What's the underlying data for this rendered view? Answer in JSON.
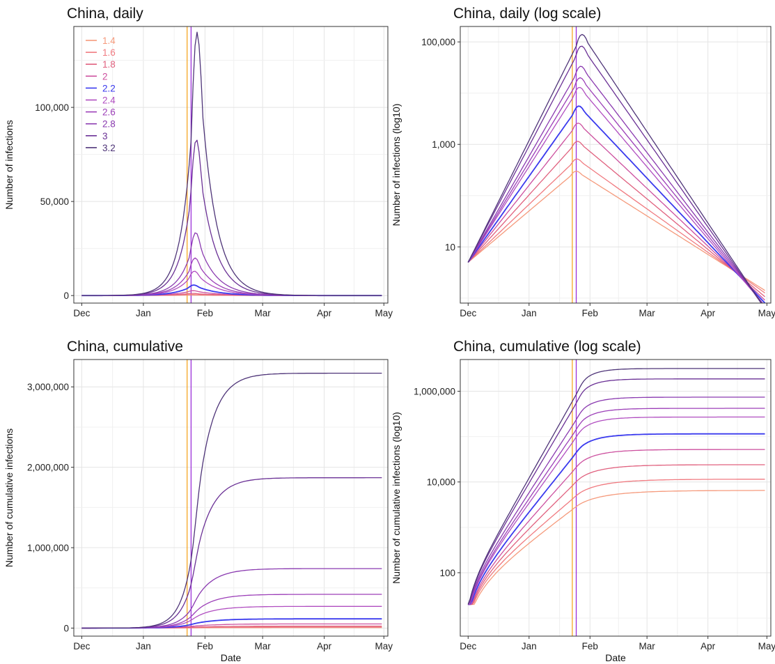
{
  "chart_data": [
    {
      "id": "daily",
      "type": "line",
      "title": "China, daily",
      "xlabel": "",
      "ylabel": "Number of infections",
      "y_scale": "linear",
      "x_ticks": [
        "Dec",
        "Jan",
        "Feb",
        "Mar",
        "Apr",
        "May"
      ],
      "y_ticks": [
        0,
        50000,
        100000
      ],
      "y_tick_labels": [
        "0",
        "50,000",
        "100,000"
      ],
      "ylim": [
        -4000,
        143000
      ],
      "xlim": [
        "2019-11-27",
        "2020-05-03"
      ],
      "grid": true,
      "legend": "top-left",
      "vlines": [
        {
          "x": "2020-01-23",
          "color": "#f5a623"
        },
        {
          "x": "2020-01-25",
          "color": "#9b30d9"
        }
      ]
    },
    {
      "id": "daily_log",
      "type": "line",
      "title": "China, daily (log scale)",
      "xlabel": "",
      "ylabel": "Number of infections (log10)",
      "y_scale": "log10",
      "x_ticks": [
        "Dec",
        "Jan",
        "Feb",
        "Mar",
        "Apr",
        "May"
      ],
      "y_ticks": [
        10,
        1000,
        100000
      ],
      "y_tick_labels": [
        "10",
        "1,000",
        "100,000"
      ],
      "ylim": [
        0.8,
        200000
      ],
      "xlim": [
        "2019-11-27",
        "2020-05-03"
      ],
      "grid": true,
      "legend": "none",
      "vlines": [
        {
          "x": "2020-01-23",
          "color": "#f5a623"
        },
        {
          "x": "2020-01-25",
          "color": "#9b30d9"
        }
      ]
    },
    {
      "id": "cumulative",
      "type": "line",
      "title": "China, cumulative",
      "xlabel": "Date",
      "ylabel": "Number of cumulative infections",
      "y_scale": "linear",
      "x_ticks": [
        "Dec",
        "Jan",
        "Feb",
        "Mar",
        "Apr",
        "May"
      ],
      "y_ticks": [
        0,
        1000000,
        2000000,
        3000000
      ],
      "y_tick_labels": [
        "0",
        "1,000,000",
        "2,000,000",
        "3,000,000"
      ],
      "ylim": [
        -100000,
        3340000
      ],
      "xlim": [
        "2019-11-27",
        "2020-05-03"
      ],
      "grid": true,
      "legend": "none",
      "vlines": [
        {
          "x": "2020-01-23",
          "color": "#f5a623"
        },
        {
          "x": "2020-01-25",
          "color": "#9b30d9"
        }
      ]
    },
    {
      "id": "cumulative_log",
      "type": "line",
      "title": "China, cumulative (log scale)",
      "xlabel": "Date",
      "ylabel": "Number of cumulative infections (log10)",
      "y_scale": "log10",
      "x_ticks": [
        "Dec",
        "Jan",
        "Feb",
        "Mar",
        "Apr",
        "May"
      ],
      "y_ticks": [
        100,
        10000,
        1000000
      ],
      "y_tick_labels": [
        "100",
        "10,000",
        "1,000,000"
      ],
      "ylim": [
        4,
        5000000
      ],
      "xlim": [
        "2019-11-27",
        "2020-05-03"
      ],
      "grid": true,
      "legend": "none",
      "vlines": [
        {
          "x": "2020-01-23",
          "color": "#f5a623"
        },
        {
          "x": "2020-01-25",
          "color": "#9b30d9"
        }
      ]
    }
  ],
  "series": [
    {
      "name": "1.4",
      "color": "#f59a7c",
      "peak_daily": 300,
      "final_cumulative": 6500
    },
    {
      "name": "1.6",
      "color": "#f07a80",
      "peak_daily": 520,
      "final_cumulative": 11500
    },
    {
      "name": "1.8",
      "color": "#e0607e",
      "peak_daily": 1150,
      "final_cumulative": 24000
    },
    {
      "name": "2",
      "color": "#cc4f9e",
      "peak_daily": 2600,
      "final_cumulative": 52000
    },
    {
      "name": "2.2",
      "color": "#3a3aee",
      "peak_daily": 5600,
      "final_cumulative": 115000
    },
    {
      "name": "2.4",
      "color": "#b04dc0",
      "peak_daily": 13000,
      "final_cumulative": 270000
    },
    {
      "name": "2.6",
      "color": "#9c3fb8",
      "peak_daily": 20000,
      "final_cumulative": 420000
    },
    {
      "name": "2.8",
      "color": "#8a3ab0",
      "peak_daily": 33500,
      "final_cumulative": 740000
    },
    {
      "name": "3",
      "color": "#6a3095",
      "peak_daily": 83000,
      "final_cumulative": 1870000
    },
    {
      "name": "3.2",
      "color": "#4e3478",
      "peak_daily": 140000,
      "final_cumulative": 3170000
    }
  ],
  "model": {
    "start_date": "2019-12-01",
    "end_date": "2020-04-30",
    "start_value": 5,
    "peak_date_min": "2020-01-25",
    "peak_date_max": "2020-01-28"
  }
}
